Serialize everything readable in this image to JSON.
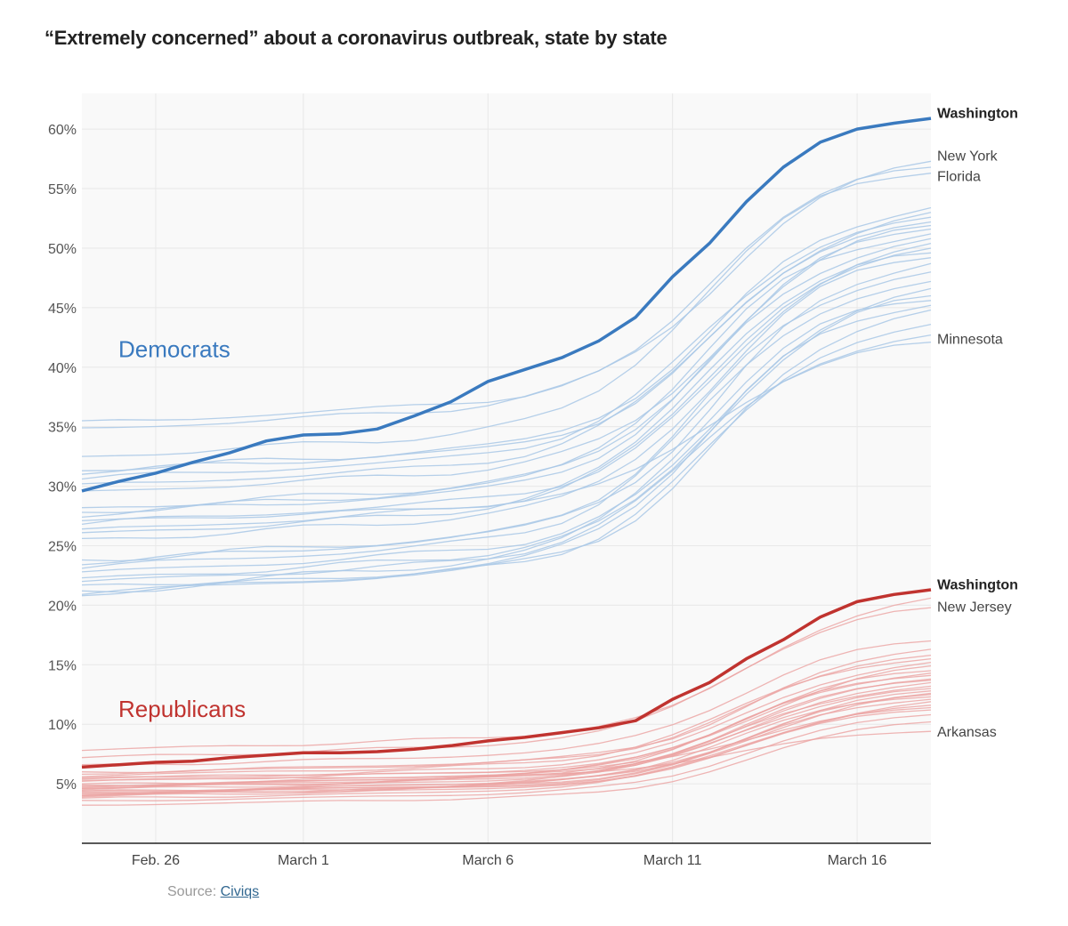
{
  "title": "“Extremely concerned” about a coronavirus outbreak, state by state",
  "source": {
    "prefix": "Source: ",
    "link_text": "Civiqs"
  },
  "colors": {
    "dem_highlight": "#3a7abf",
    "dem_light": "#a9c8e6",
    "rep_highlight": "#c0332f",
    "rep_light": "#eba3a1",
    "grid": "#e8e8e8",
    "plot_bg": "#f9f9f9"
  },
  "chart_data": {
    "type": "line",
    "title": "“Extremely concerned” about a coronavirus outbreak, state by state",
    "xlabel": "",
    "ylabel": "",
    "x_start": "Feb. 24",
    "x_end": "March 19",
    "x_ticks": [
      {
        "label": "Feb. 26",
        "day": 2
      },
      {
        "label": "March 1",
        "day": 6
      },
      {
        "label": "March 6",
        "day": 11
      },
      {
        "label": "March 11",
        "day": 16
      },
      {
        "label": "March 16",
        "day": 21
      }
    ],
    "y_ticks": [
      "5%",
      "10%",
      "15%",
      "20%",
      "25%",
      "30%",
      "35%",
      "40%",
      "45%",
      "50%",
      "55%",
      "60%"
    ],
    "ylim": [
      0,
      63
    ],
    "grid": true,
    "groups": [
      {
        "name": "Democrats",
        "color": "#3a7abf"
      },
      {
        "name": "Republicans",
        "color": "#c0332f"
      }
    ],
    "highlight_series": [
      {
        "name": "Washington",
        "party": "Democrats",
        "values": [
          29.6,
          30.4,
          31.1,
          32,
          32.8,
          33.8,
          34.3,
          34.4,
          34.8,
          35.9,
          37.1,
          38.8,
          39.8,
          40.8,
          42.2,
          44.2,
          47.6,
          50.4,
          53.9,
          56.8,
          58.9,
          60.0,
          60.5,
          60.9
        ]
      },
      {
        "name": "Washington",
        "party": "Republicans",
        "values": [
          6.4,
          6.6,
          6.8,
          6.9,
          7.2,
          7.4,
          7.6,
          7.6,
          7.7,
          7.9,
          8.2,
          8.6,
          8.9,
          9.3,
          9.7,
          10.3,
          12.1,
          13.5,
          15.5,
          17.1,
          19.0,
          20.3,
          20.9,
          21.3
        ]
      }
    ],
    "state_labels": [
      {
        "text": "Washington",
        "value": 61.4,
        "bold": true
      },
      {
        "text": "New York",
        "value": 57.8,
        "bold": false
      },
      {
        "text": "Florida",
        "value": 56.1,
        "bold": false
      },
      {
        "text": "Minnesota",
        "value": 42.4,
        "bold": false
      },
      {
        "text": "Washington",
        "value": 21.8,
        "bold": true
      },
      {
        "text": "New Jersey",
        "value": 19.9,
        "bold": false
      },
      {
        "text": "Arkansas",
        "value": 9.4,
        "bold": false
      }
    ],
    "dem_other_end_values": [
      57.3,
      56.8,
      56.3,
      53.4,
      53.0,
      52.6,
      52.2,
      51.9,
      51.6,
      51.2,
      50.8,
      50.4,
      50.0,
      49.6,
      49.2,
      48.7,
      48.0,
      47.2,
      46.6,
      46.0,
      45.6,
      45.2,
      44.8,
      43.6,
      42.7,
      42.1
    ],
    "dem_other_start_values": [
      35.5,
      34.9,
      32.5,
      31.3,
      31.0,
      30.6,
      30.2,
      29.6,
      28.2,
      27.8,
      27.4,
      26.8,
      26.4,
      26.1,
      25.6,
      23.8,
      23.4,
      23.1,
      22.8,
      22.3,
      21.7,
      21.2,
      20.8,
      20.9,
      22.0,
      27.1
    ],
    "rep_other_end_values": [
      20.6,
      19.8,
      17.0,
      16.3,
      15.8,
      15.5,
      15.2,
      14.9,
      14.5,
      14.1,
      13.8,
      13.5,
      13.2,
      13.0,
      12.8,
      12.5,
      12.3,
      12.1,
      11.9,
      11.6,
      11.2,
      10.8,
      10.2,
      9.4,
      14.3,
      12.6,
      11.4,
      13.7
    ],
    "rep_other_start_values": [
      7.8,
      7.2,
      6.6,
      6.0,
      5.8,
      5.6,
      5.4,
      5.2,
      5.0,
      4.9,
      4.8,
      4.7,
      4.6,
      4.5,
      4.4,
      4.3,
      4.2,
      4.1,
      4.0,
      3.9,
      3.8,
      3.6,
      3.2,
      5.3,
      4.6,
      4.0,
      5.5,
      4.4
    ]
  }
}
